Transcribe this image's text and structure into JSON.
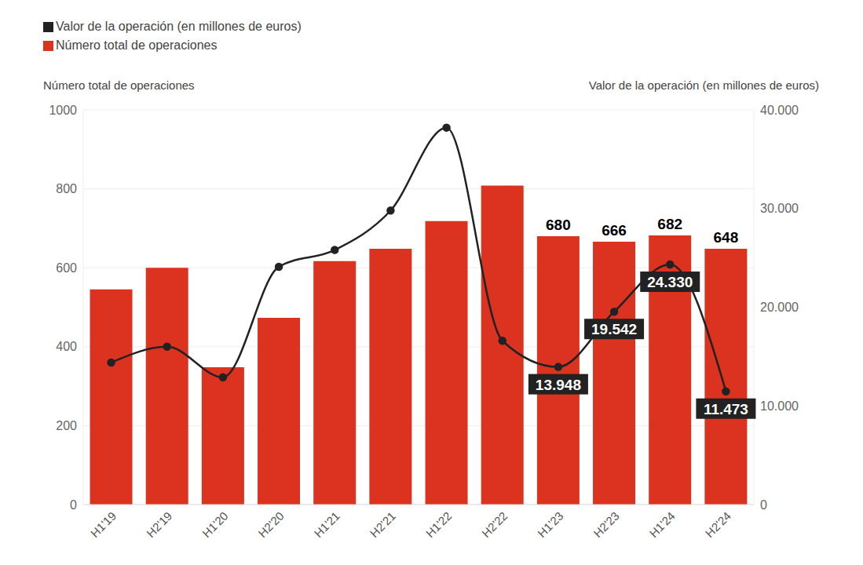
{
  "chart_data": {
    "type": "bar",
    "legend": "top-left",
    "grid": true,
    "data_labels": true,
    "ylabel": "Número total de operaciones",
    "y2label": "Valor de la operación (en millones de euros)",
    "categories": [
      "H1'19",
      "H2'19",
      "H1'20",
      "H2'20",
      "H1'21",
      "H2'21",
      "H1'22",
      "H2'22",
      "H1'23",
      "H2'23",
      "H1'24",
      "H2'24"
    ],
    "series": [
      {
        "name": "Valor de la operación (en millones de euros)",
        "type": "line",
        "axis": "y2",
        "color": "#222222",
        "marker": "circle",
        "line_style": "solid",
        "values": [
          14400,
          16000,
          12900,
          24100,
          25800,
          29800,
          38200,
          16600,
          13948,
          19542,
          24330,
          11473
        ],
        "value_labels": [
          null,
          null,
          null,
          null,
          null,
          null,
          null,
          null,
          "13.948",
          "19.542",
          "24.330",
          "11.473"
        ]
      },
      {
        "name": "Número total de operaciones",
        "type": "bar",
        "color": "#dc3220",
        "values": [
          545,
          600,
          348,
          473,
          617,
          648,
          718,
          808,
          680,
          666,
          682,
          648
        ],
        "value_labels": [
          null,
          null,
          null,
          null,
          null,
          null,
          null,
          null,
          "680",
          "666",
          "682",
          "648"
        ]
      }
    ],
    "ylim": [
      0,
      1000
    ],
    "yticks": [
      0,
      200,
      400,
      600,
      800,
      1000
    ],
    "y2lim": [
      0,
      40000
    ],
    "y2ticks": [
      0,
      {
        "value": 10000,
        "label": "10.000"
      },
      {
        "value": 20000,
        "label": "20.000"
      },
      {
        "value": 30000,
        "label": "30.000"
      },
      {
        "value": 40000,
        "label": "40.000"
      }
    ]
  }
}
